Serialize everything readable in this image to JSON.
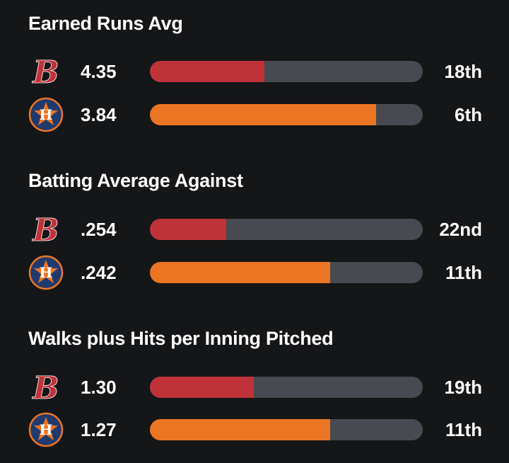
{
  "colors": {
    "background": "#151618",
    "track": "#474a50",
    "red_sox": "#c0323a",
    "astros": "#ec7523",
    "astros_navy": "#213a6e"
  },
  "stats": [
    {
      "title": "Earned Runs Avg",
      "teams": [
        {
          "logo": "red-sox-logo",
          "value": "4.35",
          "rank": "18th",
          "fill_fraction": 0.42,
          "color": "#c0323a"
        },
        {
          "logo": "astros-logo",
          "value": "3.84",
          "rank": "6th",
          "fill_fraction": 0.83,
          "color": "#ec7523"
        }
      ]
    },
    {
      "title": "Batting Average Against",
      "teams": [
        {
          "logo": "red-sox-logo",
          "value": ".254",
          "rank": "22nd",
          "fill_fraction": 0.28,
          "color": "#c0323a"
        },
        {
          "logo": "astros-logo",
          "value": ".242",
          "rank": "11th",
          "fill_fraction": 0.66,
          "color": "#ec7523"
        }
      ]
    },
    {
      "title": "Walks plus Hits per Inning Pitched",
      "teams": [
        {
          "logo": "red-sox-logo",
          "value": "1.30",
          "rank": "19th",
          "fill_fraction": 0.38,
          "color": "#c0323a"
        },
        {
          "logo": "astros-logo",
          "value": "1.27",
          "rank": "11th",
          "fill_fraction": 0.66,
          "color": "#ec7523"
        }
      ]
    }
  ]
}
